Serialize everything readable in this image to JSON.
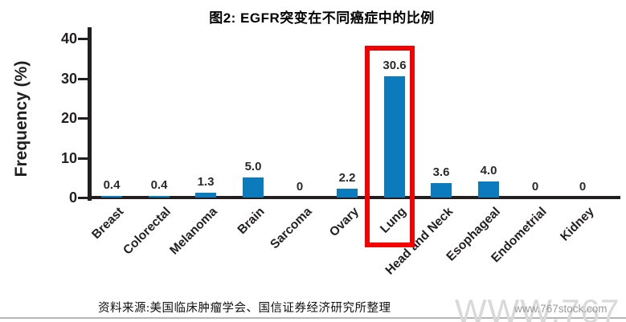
{
  "title": "图2: EGFR突变在不同癌症中的比例",
  "source_note": "资料来源:美国临床肿瘤学会、国信证券经济研究所整理",
  "watermark": {
    "big": "WWW.767",
    "small": "www.767stock.com"
  },
  "chart_data": {
    "type": "bar",
    "title": "图2: EGFR突变在不同癌症中的比例",
    "categories": [
      "Breast",
      "Colorectal",
      "Melanoma",
      "Brain",
      "Sarcoma",
      "Ovary",
      "Lung",
      "Head and Neck",
      "Esophageal",
      "Endometrial",
      "Kidney"
    ],
    "values": [
      0.4,
      0.4,
      1.3,
      5.0,
      0,
      2.2,
      30.6,
      3.6,
      4.0,
      0,
      0
    ],
    "value_labels": [
      "0.4",
      "0.4",
      "1.3",
      "5.0",
      "0",
      "2.2",
      "30.6",
      "3.6",
      "4.0",
      "0",
      "0"
    ],
    "xlabel": "",
    "ylabel": "Frequency (%)",
    "yticks": [
      0,
      10,
      20,
      30,
      40
    ],
    "ylim": [
      0,
      40
    ],
    "grid": false,
    "legend": "none",
    "highlighted_category": "Lung",
    "bar_color": "#0b7bbd",
    "highlight_box_color": "#f40000",
    "axis_color": "#231f20"
  }
}
